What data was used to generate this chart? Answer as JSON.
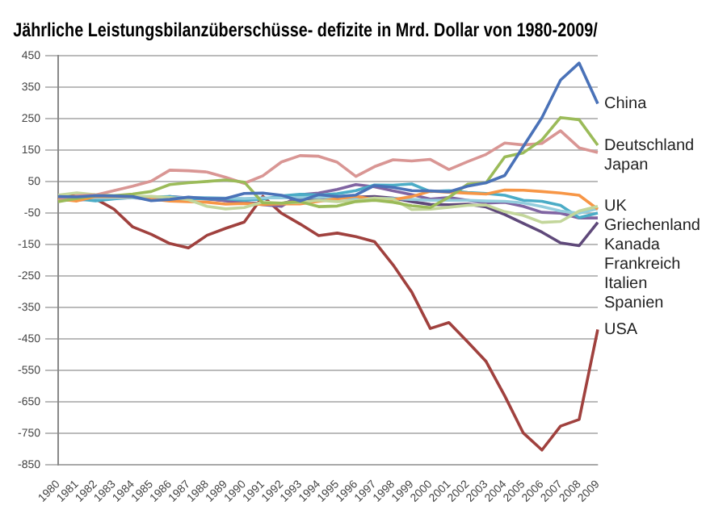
{
  "chart_data": {
    "type": "line",
    "title": "Jährliche Leistungsbilanzüberschüsse- defizite in Mrd. Dollar von 1980-2009/",
    "categories": [
      "1980",
      "1981",
      "1982",
      "1983",
      "1984",
      "1985",
      "1986",
      "1987",
      "1988",
      "1989",
      "1990",
      "1991",
      "1992",
      "1993",
      "1994",
      "1995",
      "1996",
      "1997",
      "1998",
      "1999",
      "2000",
      "2001",
      "2002",
      "2003",
      "2004",
      "2005",
      "2006",
      "2007",
      "2008",
      "2009"
    ],
    "ylim": [
      -850,
      450
    ],
    "yticks": [
      450,
      350,
      250,
      150,
      50,
      -50,
      -150,
      -250,
      -350,
      -450,
      -550,
      -650,
      -750,
      -850
    ],
    "grid": "y",
    "legend": false,
    "marker": "none",
    "line_style": "solid",
    "series": [
      {
        "name": "China",
        "color": "#4a72b8",
        "values": [
          2,
          1,
          5,
          4,
          2,
          -11,
          -7,
          0,
          -4,
          -4,
          12,
          13,
          6,
          -12,
          8,
          2,
          7,
          37,
          31,
          21,
          20,
          17,
          35,
          46,
          69,
          161,
          253,
          372,
          426,
          297
        ]
      },
      {
        "name": "Deutschland",
        "color": "#9bbb59",
        "values": [
          -14,
          -4,
          5,
          5,
          10,
          18,
          40,
          46,
          50,
          55,
          48,
          -18,
          -19,
          -14,
          -30,
          -28,
          -14,
          -10,
          -16,
          -27,
          -33,
          0,
          41,
          46,
          128,
          141,
          182,
          253,
          246,
          165
        ]
      },
      {
        "name": "Japan",
        "color": "#d99694",
        "values": [
          -11,
          5,
          7,
          21,
          35,
          51,
          86,
          84,
          80,
          63,
          44,
          68,
          112,
          132,
          130,
          111,
          66,
          97,
          119,
          115,
          120,
          88,
          113,
          136,
          172,
          166,
          171,
          211,
          157,
          142
        ]
      },
      {
        "name": "UK",
        "color": "#c3d69b",
        "values": [
          7,
          14,
          8,
          5,
          2,
          3,
          -1,
          -8,
          -29,
          -37,
          -33,
          -15,
          -19,
          -16,
          -10,
          -14,
          -11,
          -3,
          -6,
          -39,
          -38,
          -32,
          -26,
          -25,
          -46,
          -58,
          -80,
          -77,
          -44,
          -29
        ]
      },
      {
        "name": "Kanada",
        "color": "#f79646",
        "values": [
          -6,
          -12,
          2,
          2,
          2,
          -6,
          -12,
          -14,
          -16,
          -22,
          -20,
          -23,
          -21,
          -21,
          -13,
          -5,
          3,
          -8,
          -8,
          2,
          19,
          16,
          13,
          10,
          23,
          22,
          18,
          13,
          6,
          -38
        ]
      },
      {
        "name": "Griechenland",
        "color": "#93cddd",
        "values": [
          -2,
          -2,
          -2,
          -2,
          -2,
          -3,
          -2,
          -1,
          -1,
          -3,
          -4,
          -2,
          -2,
          -1,
          0,
          -3,
          -5,
          -5,
          -4,
          -7,
          -10,
          -10,
          -10,
          -12,
          -13,
          -18,
          -30,
          -44,
          -51,
          -36
        ]
      },
      {
        "name": "Frankreich",
        "color": "#4bacc6",
        "values": [
          -4,
          -5,
          -12,
          -5,
          -1,
          0,
          2,
          -4,
          -5,
          -5,
          -10,
          -6,
          4,
          9,
          7,
          11,
          21,
          39,
          38,
          42,
          18,
          21,
          15,
          12,
          6,
          -10,
          -13,
          -26,
          -65,
          -50
        ]
      },
      {
        "name": "Italien",
        "color": "#8064a2",
        "values": [
          -10,
          -9,
          -6,
          1,
          -2,
          -4,
          2,
          -2,
          -6,
          -11,
          -16,
          -24,
          -29,
          8,
          13,
          25,
          40,
          33,
          20,
          8,
          -6,
          -1,
          -10,
          -19,
          -16,
          -29,
          -48,
          -51,
          -66,
          -66
        ]
      },
      {
        "name": "Spanien",
        "color": "#5f497a",
        "values": [
          -5,
          -5,
          -4,
          -3,
          -2,
          0,
          -1,
          -2,
          -4,
          -11,
          -18,
          -20,
          -21,
          -6,
          -6,
          1,
          0,
          2,
          -3,
          -14,
          -23,
          -24,
          -22,
          -31,
          -55,
          -83,
          -111,
          -145,
          -154,
          -80
        ]
      },
      {
        "name": "USA",
        "color": "#a0413e",
        "values": [
          2,
          5,
          -5,
          -38,
          -94,
          -118,
          -147,
          -161,
          -121,
          -99,
          -79,
          3,
          -51,
          -85,
          -122,
          -114,
          -125,
          -141,
          -215,
          -301,
          -417,
          -398,
          -459,
          -522,
          -631,
          -749,
          -803,
          -727,
          -706,
          -420
        ]
      }
    ]
  }
}
